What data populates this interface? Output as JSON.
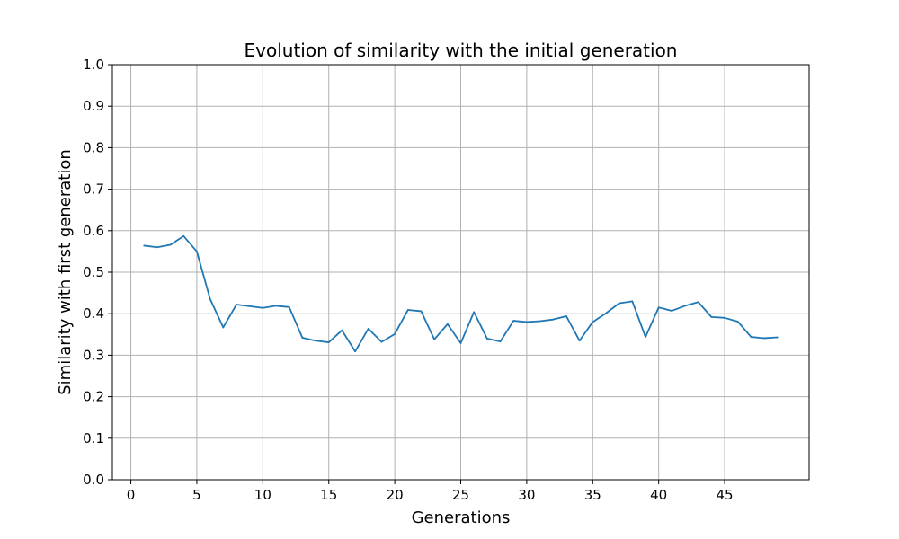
{
  "chart_data": {
    "type": "line",
    "title": "Evolution of similarity with the initial generation",
    "xlabel": "Generations",
    "ylabel": "Similarity with first generation",
    "xlim": [
      -1.4,
      51.4
    ],
    "ylim": [
      0.0,
      1.0
    ],
    "x_ticks": [
      0,
      5,
      10,
      15,
      20,
      25,
      30,
      35,
      40,
      45
    ],
    "y_ticks": [
      0.0,
      0.1,
      0.2,
      0.3,
      0.4,
      0.5,
      0.6,
      0.7,
      0.8,
      0.9,
      1.0
    ],
    "x_tick_labels": [
      "0",
      "5",
      "10",
      "15",
      "20",
      "25",
      "30",
      "35",
      "40",
      "45"
    ],
    "y_tick_labels": [
      "0.0",
      "0.1",
      "0.2",
      "0.3",
      "0.4",
      "0.5",
      "0.6",
      "0.7",
      "0.8",
      "0.9",
      "1.0"
    ],
    "grid": true,
    "series": [
      {
        "color": "#1f77b4",
        "x": [
          1,
          2,
          3,
          4,
          5,
          6,
          7,
          8,
          9,
          10,
          11,
          12,
          13,
          14,
          15,
          16,
          17,
          18,
          19,
          20,
          21,
          22,
          23,
          24,
          25,
          26,
          27,
          28,
          29,
          30,
          31,
          32,
          33,
          34,
          35,
          36,
          37,
          38,
          39,
          40,
          41,
          42,
          43,
          44,
          45,
          46,
          47,
          48,
          49
        ],
        "values": [
          0.564,
          0.56,
          0.566,
          0.587,
          0.55,
          0.436,
          0.367,
          0.422,
          0.418,
          0.414,
          0.419,
          0.416,
          0.342,
          0.335,
          0.331,
          0.36,
          0.309,
          0.364,
          0.332,
          0.351,
          0.409,
          0.406,
          0.338,
          0.375,
          0.329,
          0.404,
          0.34,
          0.333,
          0.383,
          0.38,
          0.382,
          0.386,
          0.394,
          0.335,
          0.38,
          0.401,
          0.425,
          0.43,
          0.344,
          0.415,
          0.407,
          0.419,
          0.428,
          0.392,
          0.39,
          0.381,
          0.344,
          0.341,
          0.343
        ]
      }
    ]
  }
}
